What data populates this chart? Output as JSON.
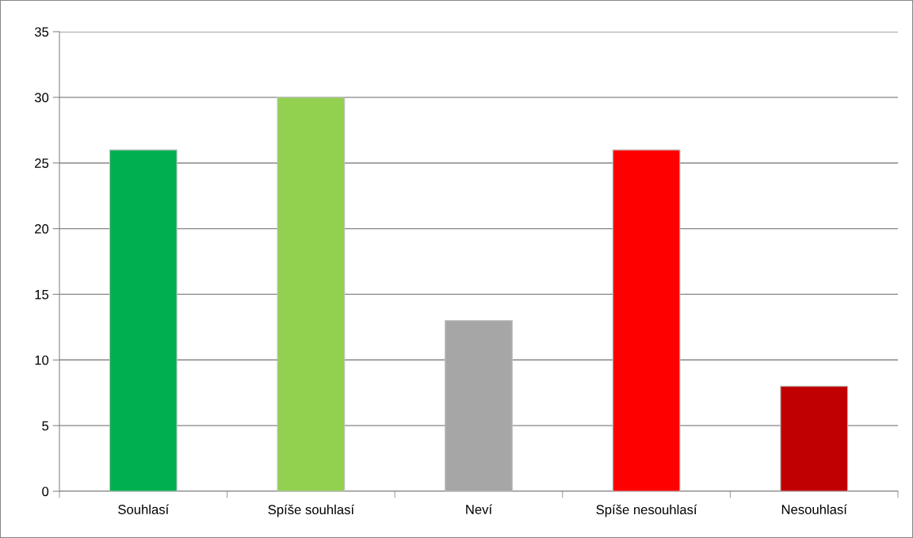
{
  "chart_data": {
    "type": "bar",
    "categories": [
      "Souhlasí",
      "Spíše souhlasí",
      "Neví",
      "Spíše nesouhlasí",
      "Nesouhlasí"
    ],
    "values": [
      26,
      30,
      13,
      26,
      8
    ],
    "colors": [
      "#00b050",
      "#92d050",
      "#a6a6a6",
      "#ff0000",
      "#c00000"
    ],
    "ylim": [
      0,
      35
    ],
    "yticks": [
      0,
      5,
      10,
      15,
      20,
      25,
      30,
      35
    ],
    "grid": "y",
    "legend": false
  }
}
